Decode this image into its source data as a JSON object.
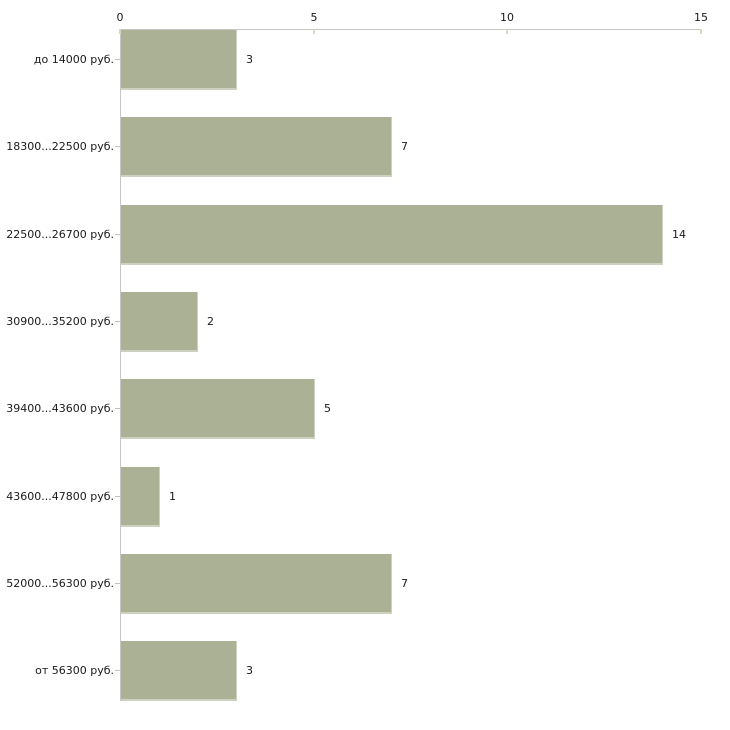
{
  "chart_data": {
    "type": "bar",
    "orientation": "horizontal",
    "title": "",
    "xlabel": "",
    "ylabel": "",
    "categories": [
      "до 14000 руб.",
      "18300...22500 руб.",
      "22500...26700 руб.",
      "30900...35200 руб.",
      "39400...43600 руб.",
      "43600...47800 руб.",
      "52000...56300 руб.",
      "от 56300 руб."
    ],
    "values": [
      3,
      7,
      14,
      2,
      5,
      1,
      7,
      3
    ],
    "value_labels": [
      "3",
      "7",
      "14",
      "2",
      "5",
      "1",
      "7",
      "3"
    ],
    "xlim": [
      0,
      15
    ],
    "x_ticks": [
      0,
      5,
      10,
      15
    ],
    "x_tick_labels": [
      "0",
      "5",
      "10",
      "15"
    ],
    "axis_position": "top",
    "grid": false,
    "legend": false,
    "colors": {
      "bar_fill": "#abb194",
      "bar_edge": "#cdd1c0",
      "axis_line": "#c6c6c6",
      "x_tick_mark": "#d6dabf",
      "category_tick_mark": "#c2c2c2",
      "text": "#1a1a1a",
      "background": "#ffffff"
    }
  }
}
